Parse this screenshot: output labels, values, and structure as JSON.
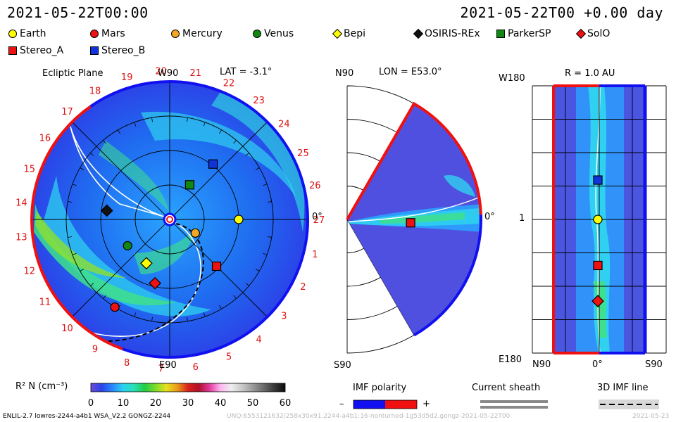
{
  "header": {
    "left_time": "2021-05-22T00:00",
    "right_time": "2021-05-22T00 +0.00 day"
  },
  "legend": [
    {
      "label": "Earth",
      "color": "#ffff00",
      "shape": "circle"
    },
    {
      "label": "Mars",
      "color": "#ee1111",
      "shape": "circle"
    },
    {
      "label": "Mercury",
      "color": "#f5a623",
      "shape": "circle"
    },
    {
      "label": "Venus",
      "color": "#118811",
      "shape": "circle"
    },
    {
      "label": "Bepi",
      "color": "#ffff00",
      "shape": "diamond"
    },
    {
      "label": "OSIRIS-REx",
      "color": "#111111",
      "shape": "diamond"
    },
    {
      "label": "ParkerSP",
      "color": "#118811",
      "shape": "square"
    },
    {
      "label": "SolO",
      "color": "#ee1111",
      "shape": "diamond"
    },
    {
      "label": "Stereo_A",
      "color": "#ee1111",
      "shape": "square"
    },
    {
      "label": "Stereo_B",
      "color": "#1133dd",
      "shape": "square"
    }
  ],
  "panels": {
    "ecliptic": {
      "title": "Ecliptic Plane",
      "top_label": "W90",
      "lat_label": "LAT = -3.1°",
      "bottom_label": "E90",
      "right_label": "0°",
      "carrington_ticks": [
        "27",
        "1",
        "2",
        "3",
        "4",
        "5",
        "6",
        "7",
        "8",
        "9",
        "10",
        "11",
        "12",
        "13",
        "14",
        "15",
        "16",
        "17",
        "18",
        "19",
        "20",
        "21",
        "22",
        "23",
        "24",
        "25",
        "26"
      ]
    },
    "meridional": {
      "top_label": "N90",
      "lon_label": "LON = E53.0°",
      "bottom_label": "S90",
      "right_label": "0°"
    },
    "radial": {
      "top_left_label": "W180",
      "r_label": "R = 1.0 AU",
      "mid_label": "1",
      "bottom_left_label": "E180",
      "bottom_labels": [
        "N90",
        "0°",
        "S90"
      ]
    }
  },
  "colorbar": {
    "label": "R² N (cm⁻³)",
    "ticks": [
      "0",
      "10",
      "20",
      "30",
      "40",
      "50",
      "60"
    ],
    "stops": [
      "#6a4ad8",
      "#2b44e8",
      "#2a86ff",
      "#27d3f0",
      "#28e0b4",
      "#22cc44",
      "#7fdc2a",
      "#e7e020",
      "#e89a1a",
      "#d8221c",
      "#b01028",
      "#e23ca0",
      "#ffb6f0",
      "#eeeeee",
      "#c9c9c9",
      "#9a9a9a",
      "#6a6a6a",
      "#383838",
      "#0b0b0b"
    ]
  },
  "footer_legends": {
    "imf_title": "IMF polarity",
    "imf_minus": "–",
    "imf_plus": "+",
    "imf_neg_color": "#1010f0",
    "imf_pos_color": "#f01010",
    "sheath_title": "Current sheath",
    "imf3d_title": "3D IMF line"
  },
  "footer": {
    "left_text": "ENLIL-2.7 lowres-2244-a4b1 WSA_V2.2 GONGZ-2244",
    "right_text": "UNQ:6553121632/258x30x91.2244-a4b1:16-nonturned-1g53d5d2.gongz-2021-05-22T00",
    "right_date": "2021-05-23"
  },
  "bodies": {
    "ecliptic": [
      {
        "name": "Earth",
        "r_au": 1.0,
        "angle_deg": 0
      },
      {
        "name": "Mars",
        "r_au": 1.5,
        "angle_deg": -122
      },
      {
        "name": "Mercury",
        "r_au": 0.42,
        "angle_deg": -28
      },
      {
        "name": "Venus",
        "r_au": 0.72,
        "angle_deg": -148
      },
      {
        "name": "Bepi",
        "r_au": 0.72,
        "angle_deg": -118
      },
      {
        "name": "OSIRIS-REx",
        "r_au": 0.92,
        "angle_deg": 172
      },
      {
        "name": "ParkerSP",
        "r_au": 0.58,
        "angle_deg": 60
      },
      {
        "name": "SolO",
        "r_au": 0.95,
        "angle_deg": -103
      },
      {
        "name": "Stereo_A",
        "r_au": 0.96,
        "angle_deg": -45
      },
      {
        "name": "Stereo_B",
        "r_au": 1.02,
        "angle_deg": 52
      }
    ],
    "meridional": [
      {
        "name": "Stereo_A",
        "r_au": 0.95,
        "lat_deg": -3
      }
    ],
    "radial": [
      {
        "name": "Stereo_B",
        "lon_deg": 53
      },
      {
        "name": "Earth",
        "lon_deg": 0
      },
      {
        "name": "Stereo_A",
        "lon_deg": -62
      },
      {
        "name": "SolO",
        "lon_deg": -110
      }
    ]
  }
}
